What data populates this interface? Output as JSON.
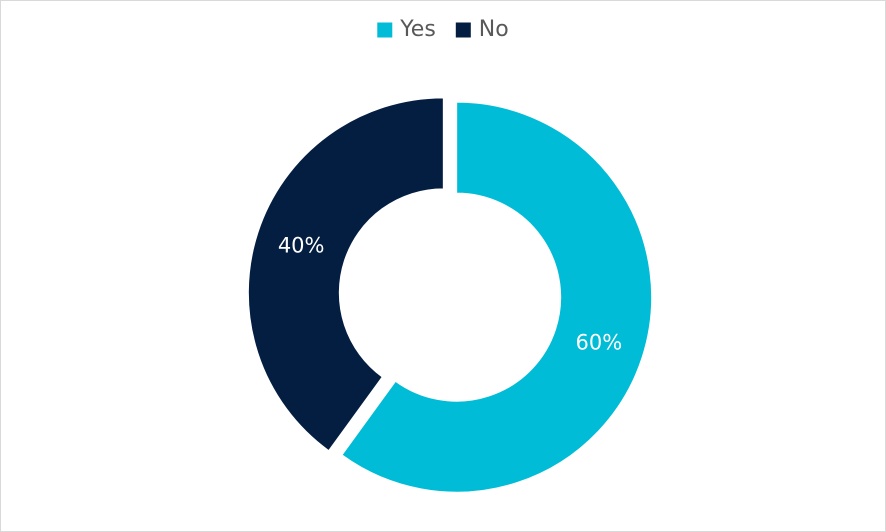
{
  "chart_data": {
    "type": "donut",
    "series": [
      {
        "name": "Yes",
        "color": "#00bcd6",
        "values": [
          60
        ],
        "value_labels": [
          "60%"
        ]
      },
      {
        "name": "No",
        "color": "#041e42",
        "values": [
          40
        ],
        "value_labels": [
          "40%"
        ]
      }
    ],
    "legend": "top"
  }
}
